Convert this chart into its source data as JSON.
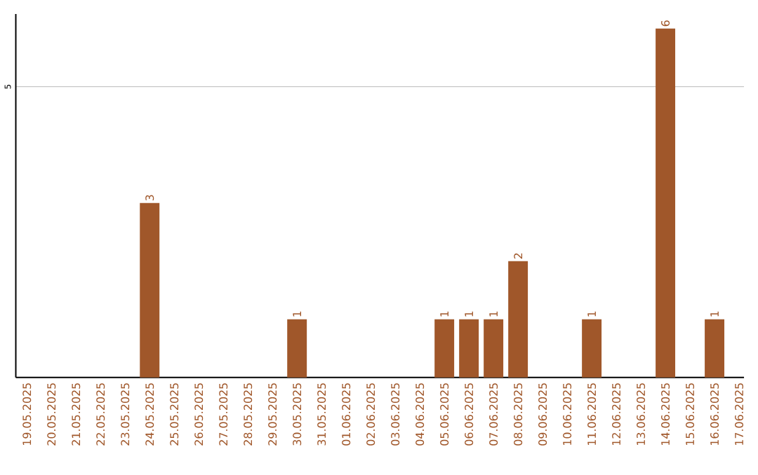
{
  "chart_data": {
    "type": "bar",
    "categories": [
      "19.05.2025",
      "20.05.2025",
      "21.05.2025",
      "22.05.2025",
      "23.05.2025",
      "24.05.2025",
      "25.05.2025",
      "26.05.2025",
      "27.05.2025",
      "28.05.2025",
      "29.05.2025",
      "30.05.2025",
      "31.05.2025",
      "01.06.2025",
      "02.06.2025",
      "03.06.2025",
      "04.06.2025",
      "05.06.2025",
      "06.06.2025",
      "07.06.2025",
      "08.06.2025",
      "09.06.2025",
      "10.06.2025",
      "11.06.2025",
      "12.06.2025",
      "13.06.2025",
      "14.06.2025",
      "15.06.2025",
      "16.06.2025",
      "17.06.2025"
    ],
    "values": [
      0,
      0,
      0,
      0,
      0,
      3,
      0,
      0,
      0,
      0,
      0,
      1,
      0,
      0,
      0,
      0,
      0,
      1,
      1,
      1,
      2,
      0,
      0,
      1,
      0,
      0,
      6,
      0,
      1,
      0
    ],
    "value_labels": [
      null,
      null,
      null,
      null,
      null,
      "3",
      null,
      null,
      null,
      null,
      null,
      "1",
      null,
      null,
      null,
      null,
      null,
      "1",
      "1",
      "1",
      "2",
      null,
      null,
      "1",
      null,
      null,
      "6",
      null,
      "1",
      null
    ],
    "color": "#a0572a",
    "ylim": [
      0,
      6.25
    ],
    "yticks": [
      5
    ],
    "grid": "y"
  }
}
